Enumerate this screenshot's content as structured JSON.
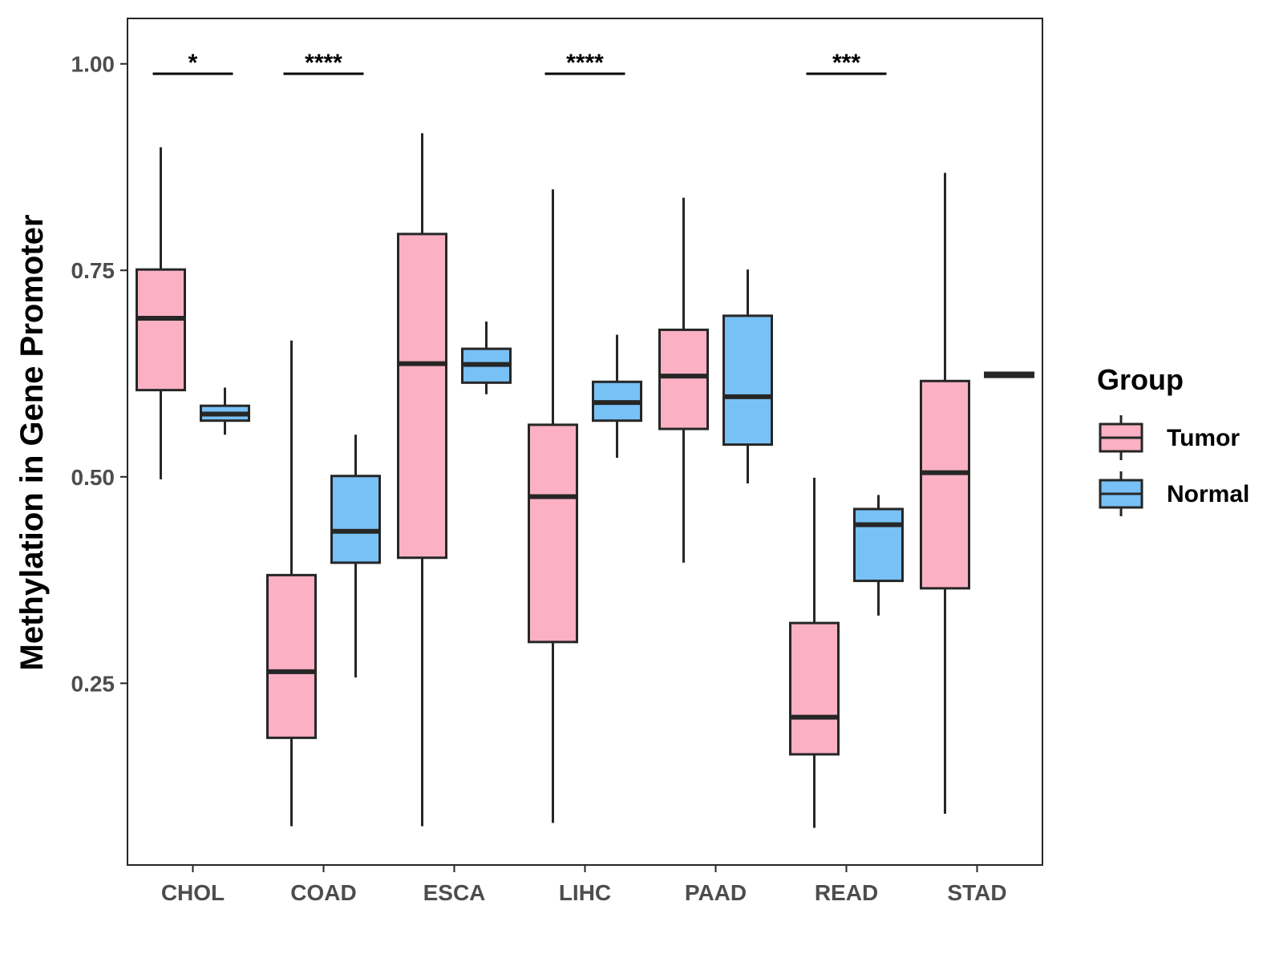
{
  "colors": {
    "tumor": "#FBB1C3",
    "normal": "#78C1F6",
    "stroke": "#262626",
    "axis_text": "#4d4d4d"
  },
  "chart_data": {
    "type": "boxplot",
    "title": "",
    "xlabel": "",
    "ylabel": "Methylation in Gene Promoter",
    "ylim": [
      0.03,
      1.055
    ],
    "yticks": [
      0.25,
      0.5,
      0.75,
      1.0
    ],
    "ytick_labels": [
      "0.25",
      "0.50",
      "0.75",
      "1.00"
    ],
    "categories": [
      "CHOL",
      "COAD",
      "ESCA",
      "LIHC",
      "PAAD",
      "READ",
      "STAD"
    ],
    "legend": {
      "title": "Group",
      "position": "right",
      "entries": [
        "Tumor",
        "Normal"
      ]
    },
    "series": [
      {
        "name": "Tumor",
        "boxes": [
          {
            "min": 0.497,
            "q1": 0.605,
            "median": 0.692,
            "q3": 0.751,
            "max": 0.899
          },
          {
            "min": 0.077,
            "q1": 0.184,
            "median": 0.264,
            "q3": 0.381,
            "max": 0.665
          },
          {
            "min": 0.077,
            "q1": 0.402,
            "median": 0.637,
            "q3": 0.794,
            "max": 0.916
          },
          {
            "min": 0.081,
            "q1": 0.3,
            "median": 0.476,
            "q3": 0.563,
            "max": 0.848
          },
          {
            "min": 0.396,
            "q1": 0.558,
            "median": 0.622,
            "q3": 0.678,
            "max": 0.838
          },
          {
            "min": 0.075,
            "q1": 0.164,
            "median": 0.209,
            "q3": 0.323,
            "max": 0.499
          },
          {
            "min": 0.092,
            "q1": 0.365,
            "median": 0.505,
            "q3": 0.616,
            "max": 0.868
          }
        ]
      },
      {
        "name": "Normal",
        "boxes": [
          {
            "min": 0.551,
            "q1": 0.568,
            "median": 0.576,
            "q3": 0.586,
            "max": 0.608
          },
          {
            "min": 0.257,
            "q1": 0.396,
            "median": 0.434,
            "q3": 0.501,
            "max": 0.551
          },
          {
            "min": 0.6,
            "q1": 0.614,
            "median": 0.636,
            "q3": 0.655,
            "max": 0.688
          },
          {
            "min": 0.523,
            "q1": 0.568,
            "median": 0.59,
            "q3": 0.615,
            "max": 0.672
          },
          {
            "min": 0.492,
            "q1": 0.539,
            "median": 0.597,
            "q3": 0.695,
            "max": 0.751
          },
          {
            "min": 0.332,
            "q1": 0.374,
            "median": 0.442,
            "q3": 0.461,
            "max": 0.478
          },
          {
            "min": 0.621,
            "q1": 0.621,
            "median": 0.624,
            "q3": 0.626,
            "max": 0.626
          }
        ]
      }
    ],
    "significance": [
      {
        "category": "CHOL",
        "label": "*",
        "y": 0.988
      },
      {
        "category": "COAD",
        "label": "****",
        "y": 0.988
      },
      {
        "category": "LIHC",
        "label": "****",
        "y": 0.988
      },
      {
        "category": "READ",
        "label": "***",
        "y": 0.988
      }
    ]
  }
}
